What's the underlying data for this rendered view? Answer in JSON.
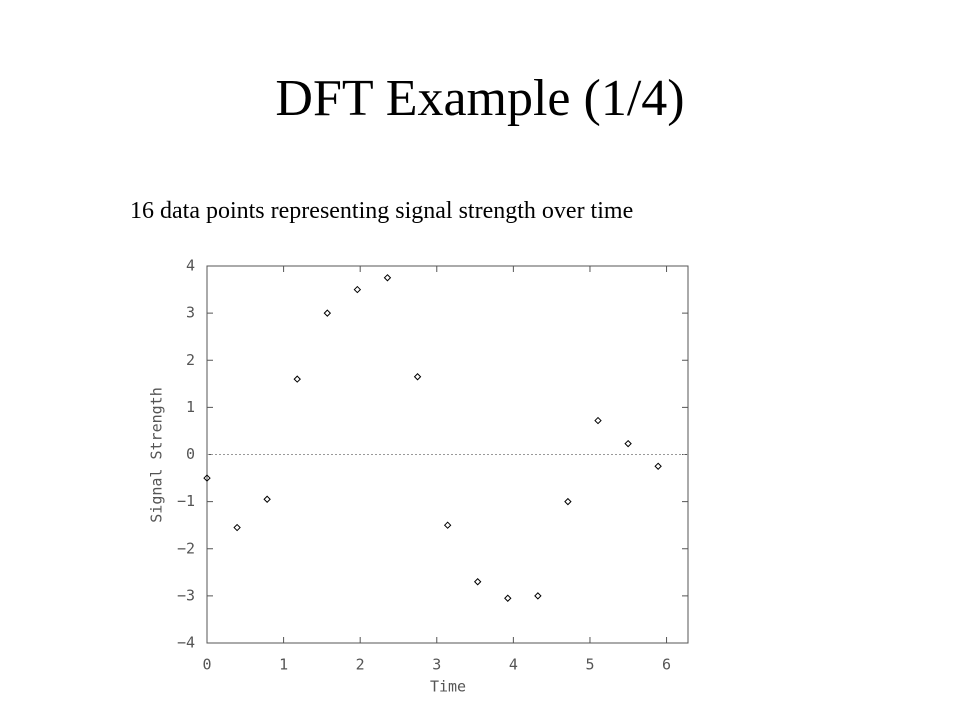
{
  "chart_data": {
    "type": "scatter",
    "title": "DFT Example (1/4)",
    "subtitle": "16 data points representing signal strength over time",
    "x_label": "Time",
    "y_label": "Signal Strength",
    "x": [
      0,
      0.393,
      0.785,
      1.178,
      1.571,
      1.963,
      2.356,
      2.749,
      3.142,
      3.534,
      3.927,
      4.32,
      4.712,
      5.105,
      5.498,
      5.89
    ],
    "values": [
      -0.5,
      -1.55,
      -0.95,
      1.6,
      3.0,
      3.5,
      3.75,
      1.65,
      -1.5,
      -2.7,
      -3.05,
      -3.0,
      -1.0,
      0.72,
      0.23,
      -0.25
    ],
    "color": "#000000",
    "xlim": [
      0,
      6.28
    ],
    "ylim": [
      -4,
      4
    ],
    "xticks": [
      0,
      1,
      2,
      3,
      4,
      5,
      6
    ],
    "yticks": [
      {
        "value": -4,
        "label": "−4"
      },
      {
        "value": -3,
        "label": "−3"
      },
      {
        "value": -2,
        "label": "−2"
      },
      {
        "value": -1,
        "label": "−1"
      },
      0,
      1,
      2,
      3,
      4
    ],
    "zero_line": true
  }
}
